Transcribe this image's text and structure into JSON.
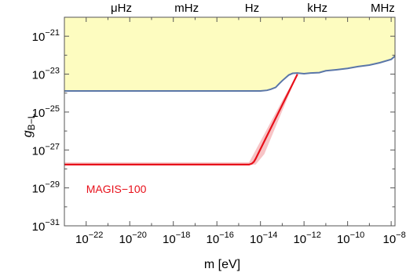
{
  "chart_data": {
    "type": "line",
    "title": "",
    "xlabel": "m [eV]",
    "ylabel": "g",
    "ylabel_sub": "B−L",
    "x_scale": "log",
    "y_scale": "log",
    "xlim": [
      1e-23,
      1.5e-08
    ],
    "ylim": [
      1e-31,
      1e-20
    ],
    "x_ticks": [
      {
        "value": 1e-22,
        "base": "10",
        "exp": "−22"
      },
      {
        "value": 1e-20,
        "base": "10",
        "exp": "−20"
      },
      {
        "value": 1e-18,
        "base": "10",
        "exp": "−18"
      },
      {
        "value": 1e-16,
        "base": "10",
        "exp": "−16"
      },
      {
        "value": 1e-14,
        "base": "10",
        "exp": "−14"
      },
      {
        "value": 1e-12,
        "base": "10",
        "exp": "−12"
      },
      {
        "value": 1e-10,
        "base": "10",
        "exp": "−10"
      },
      {
        "value": 1e-08,
        "base": "10",
        "exp": "−8"
      }
    ],
    "y_ticks": [
      {
        "value": 1e-21,
        "base": "10",
        "exp": "−21"
      },
      {
        "value": 1e-23,
        "base": "10",
        "exp": "−23"
      },
      {
        "value": 1e-25,
        "base": "10",
        "exp": "−25"
      },
      {
        "value": 1e-27,
        "base": "10",
        "exp": "−27"
      },
      {
        "value": 1e-29,
        "base": "10",
        "exp": "−29"
      },
      {
        "value": 1e-31,
        "base": "10",
        "exp": "−31"
      }
    ],
    "top_axis_labels": [
      {
        "label": "μHz",
        "x": 4.1e-21
      },
      {
        "label": "mHz",
        "x": 4.1e-18
      },
      {
        "label": "Hz",
        "x": 4.1e-15
      },
      {
        "label": "kHz",
        "x": 4.1e-12
      },
      {
        "label": "MHz",
        "x": 4.1e-09
      }
    ],
    "grid": false,
    "regions": [
      {
        "name": "excluded",
        "color": "#fdfcc0",
        "boundary": {
          "x": [
            1e-23,
            1e-21,
            1e-19,
            1e-17,
            1e-15,
            1e-14,
            2e-14,
            3e-14,
            5e-14,
            7e-14,
            1e-13,
            2e-13,
            3e-13,
            5e-13,
            1e-12,
            2e-12,
            5e-12,
            1e-11,
            3e-11,
            1e-10,
            3e-10,
            1e-09,
            3e-09,
            1e-08,
            1.5e-08
          ],
          "y": [
            1.3e-24,
            1.3e-24,
            1.3e-24,
            1.3e-24,
            1.3e-24,
            1.3e-24,
            1.4e-24,
            1.6e-24,
            2e-24,
            3e-24,
            4.5e-24,
            9e-24,
            1.1e-23,
            1.15e-23,
            1.05e-23,
            1.15e-23,
            1.2e-23,
            1.5e-23,
            1.7e-23,
            2e-23,
            2.5e-23,
            3e-23,
            4e-23,
            6e-23,
            9e-23
          ]
        },
        "boundary_color": "#5a76a8"
      },
      {
        "name": "MAGIS-100 band",
        "color": "#f7c4c6",
        "upper": {
          "x": [
            1e-23,
            3e-15,
            1e-13,
            5e-13
          ],
          "y": [
            2.2e-28,
            2.2e-28,
            4e-25,
            1e-23
          ]
        },
        "lower": {
          "x": [
            1e-23,
            6e-15,
            1.5e-14,
            5e-13
          ],
          "y": [
            1.7e-28,
            1.7e-28,
            6e-28,
            1e-23
          ]
        }
      }
    ],
    "series": [
      {
        "name": "MAGIS−100",
        "color": "#e8101a",
        "x": [
          1e-23,
          3e-15,
          4e-15,
          5e-15,
          6e-15,
          5e-13
        ],
        "y": [
          1.7e-28,
          1.7e-28,
          1.9e-28,
          2.4e-28,
          3.4e-28,
          1e-23
        ]
      }
    ],
    "annotations": [
      {
        "text": "MAGIS−100",
        "x": 1e-22,
        "y": 5.5e-30,
        "color": "#e8101a"
      }
    ]
  }
}
